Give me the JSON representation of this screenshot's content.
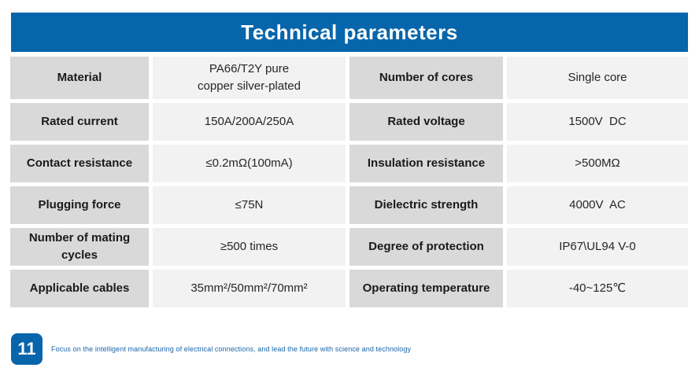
{
  "header": {
    "title": "Technical parameters"
  },
  "colors": {
    "accent_blue": "#0765ab",
    "label_cell_bg": "#d9d9d9",
    "value_cell_bg": "#f2f2f2",
    "page_background": "#ffffff"
  },
  "table": {
    "rows": [
      [
        "Material",
        "PA66/T2Y pure\ncopper silver-plated",
        "Number of cores",
        "Single core"
      ],
      [
        "Rated current",
        "150A/200A/250A",
        "Rated voltage",
        "1500V  DC"
      ],
      [
        "Contact resistance",
        "≤0.2mΩ(100mA)",
        "Insulation resistance",
        ">500MΩ"
      ],
      [
        "Plugging force",
        "≤75N",
        "Dielectric strength",
        "4000V  AC"
      ],
      [
        "Number of mating cycles",
        "≥500 times",
        "Degree of protection",
        "IP67\\UL94 V-0"
      ],
      [
        "Applicable cables",
        "35mm²/50mm²/70mm²",
        "Operating temperature",
        "-40~125℃"
      ]
    ]
  },
  "footer": {
    "page_number": "11",
    "tagline": "Focus on the intelligent manufacturing of electrical connections, and lead the future with science and technology"
  }
}
